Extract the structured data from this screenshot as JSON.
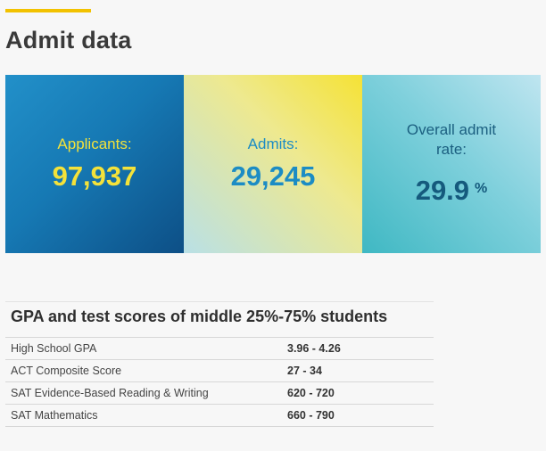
{
  "header": {
    "title": "Admit data"
  },
  "stats": {
    "applicants": {
      "label": "Applicants:",
      "value": "97,937"
    },
    "admits": {
      "label": "Admits:",
      "value": "29,245"
    },
    "admit_rate": {
      "label": "Overall admit rate:",
      "value": "29.9",
      "unit": "%"
    }
  },
  "scores": {
    "title": "GPA and test scores of middle 25%-75% students",
    "rows": [
      {
        "label": "High School GPA",
        "value": "3.96 - 4.26"
      },
      {
        "label": "ACT Composite Score",
        "value": "27 - 34"
      },
      {
        "label": "SAT Evidence-Based Reading & Writing",
        "value": "620 - 720"
      },
      {
        "label": "SAT Mathematics",
        "value": "660 - 790"
      }
    ]
  },
  "colors": {
    "accent": "#f2c200",
    "applicants_bg": "#1679b4",
    "admits_bg": "#eee98f",
    "rate_bg": "#7fd0dc"
  }
}
